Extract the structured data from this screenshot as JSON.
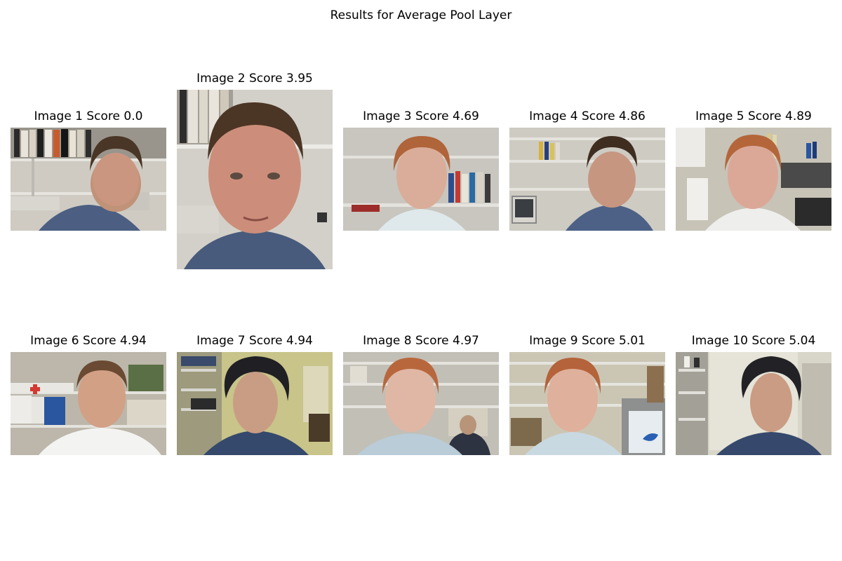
{
  "figure": {
    "title": "Results for Average Pool Layer"
  },
  "images": [
    {
      "label": "Image 1 Score 0.0",
      "subject": "dark-hair-man",
      "scene": "office-shelves-binders"
    },
    {
      "label": "Image 2 Score 3.95",
      "subject": "dark-hair-man",
      "scene": "office-shelves-binders-closeup"
    },
    {
      "label": "Image 3 Score 4.69",
      "subject": "red-hair-man",
      "scene": "office-shelves-books"
    },
    {
      "label": "Image 4 Score 4.86",
      "subject": "dark-hair-man",
      "scene": "office-shelves-monitor"
    },
    {
      "label": "Image 5 Score 4.89",
      "subject": "red-hair-man",
      "scene": "office-shelves-papers"
    },
    {
      "label": "Image 6 Score 4.94",
      "subject": "brown-hair-man",
      "scene": "office-shelves-boxes"
    },
    {
      "label": "Image 7 Score 4.94",
      "subject": "curly-hair-man",
      "scene": "office-yellow-room"
    },
    {
      "label": "Image 8 Score 4.97",
      "subject": "red-hair-man",
      "scene": "office-shelves-person-behind"
    },
    {
      "label": "Image 9 Score 5.01",
      "subject": "red-hair-man",
      "scene": "office-shelves-poster"
    },
    {
      "label": "Image 10 Score 5.04",
      "subject": "curly-hair-man",
      "scene": "office-whiteboard"
    }
  ]
}
